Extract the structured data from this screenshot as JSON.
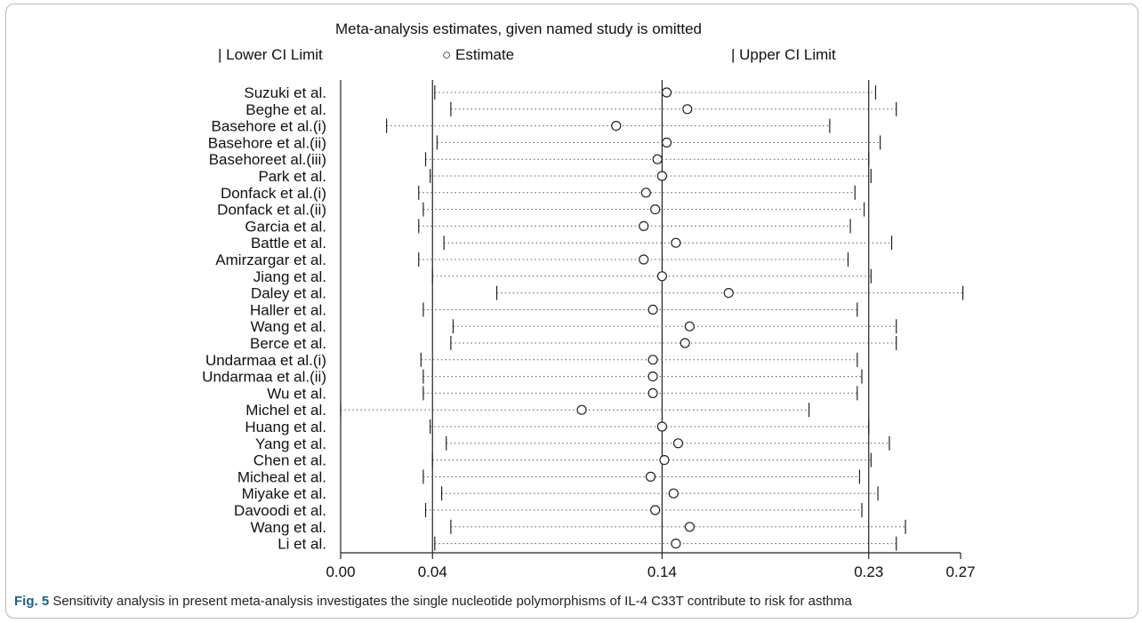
{
  "chart_data": {
    "type": "scatter",
    "title": "Meta-analysis estimates, given named study is omitted",
    "legend": {
      "position": "top",
      "entries": [
        {
          "symbol": "|",
          "label": "Lower CI Limit"
        },
        {
          "symbol": "○",
          "label": "Estimate"
        },
        {
          "symbol": "|",
          "label": "Upper CI Limit"
        }
      ]
    },
    "xlim": [
      0.0,
      0.27
    ],
    "x_ticks": [
      "0.00",
      "0.04",
      "0.14",
      "0.23",
      "0.27"
    ],
    "x_tick_values": [
      0.0,
      0.04,
      0.14,
      0.23,
      0.27
    ],
    "reference_lines": [
      0.04,
      0.14,
      0.23
    ],
    "studies": [
      {
        "label": "Suzuki et al.",
        "lower": 0.041,
        "estimate": 0.142,
        "upper": 0.233
      },
      {
        "label": "Beghe et al.",
        "lower": 0.048,
        "estimate": 0.151,
        "upper": 0.242
      },
      {
        "label": "Basehore et al.(i)",
        "lower": 0.02,
        "estimate": 0.12,
        "upper": 0.213
      },
      {
        "label": "Basehore et al.(ii)",
        "lower": 0.042,
        "estimate": 0.142,
        "upper": 0.235
      },
      {
        "label": "Basehoreet al.(iii)",
        "lower": 0.037,
        "estimate": 0.138,
        "upper": 0.23
      },
      {
        "label": "Park et al.",
        "lower": 0.039,
        "estimate": 0.14,
        "upper": 0.231
      },
      {
        "label": "Donfack et al.(i)",
        "lower": 0.034,
        "estimate": 0.133,
        "upper": 0.224
      },
      {
        "label": "Donfack et al.(ii)",
        "lower": 0.036,
        "estimate": 0.137,
        "upper": 0.228
      },
      {
        "label": "Garcia et al.",
        "lower": 0.034,
        "estimate": 0.132,
        "upper": 0.222
      },
      {
        "label": "Battle et al.",
        "lower": 0.045,
        "estimate": 0.146,
        "upper": 0.24
      },
      {
        "label": "Amirzargar et al.",
        "lower": 0.034,
        "estimate": 0.132,
        "upper": 0.221
      },
      {
        "label": "Jiang et al.",
        "lower": 0.04,
        "estimate": 0.14,
        "upper": 0.231
      },
      {
        "label": "Daley et al.",
        "lower": 0.068,
        "estimate": 0.169,
        "upper": 0.271
      },
      {
        "label": "Haller et al.",
        "lower": 0.036,
        "estimate": 0.136,
        "upper": 0.225
      },
      {
        "label": "Wang et al.",
        "lower": 0.049,
        "estimate": 0.152,
        "upper": 0.242
      },
      {
        "label": "Berce et al.",
        "lower": 0.048,
        "estimate": 0.15,
        "upper": 0.242
      },
      {
        "label": "Undarmaa et al.(i)",
        "lower": 0.035,
        "estimate": 0.136,
        "upper": 0.225
      },
      {
        "label": "Undarmaa et al.(ii)",
        "lower": 0.036,
        "estimate": 0.136,
        "upper": 0.227
      },
      {
        "label": "Wu et al.",
        "lower": 0.036,
        "estimate": 0.136,
        "upper": 0.225
      },
      {
        "label": "Michel et al.",
        "lower": 0.0,
        "estimate": 0.105,
        "upper": 0.204
      },
      {
        "label": "Huang et al.",
        "lower": 0.039,
        "estimate": 0.14,
        "upper": 0.23
      },
      {
        "label": "Yang et al.",
        "lower": 0.046,
        "estimate": 0.147,
        "upper": 0.239
      },
      {
        "label": "Chen et al.",
        "lower": 0.04,
        "estimate": 0.141,
        "upper": 0.231
      },
      {
        "label": "Micheal et al.",
        "lower": 0.036,
        "estimate": 0.135,
        "upper": 0.226
      },
      {
        "label": "Miyake et al.",
        "lower": 0.044,
        "estimate": 0.145,
        "upper": 0.234
      },
      {
        "label": "Davoodi et al.",
        "lower": 0.037,
        "estimate": 0.137,
        "upper": 0.227
      },
      {
        "label": "Wang et al.",
        "lower": 0.048,
        "estimate": 0.152,
        "upper": 0.246
      },
      {
        "label": "Li et al.",
        "lower": 0.041,
        "estimate": 0.146,
        "upper": 0.242
      }
    ]
  },
  "caption": {
    "figure_label": "Fig. 5",
    "text": " Sensitivity analysis in present meta-analysis investigates the single nucleotide polymorphisms of IL-4 C33T contribute to risk for asthma"
  }
}
